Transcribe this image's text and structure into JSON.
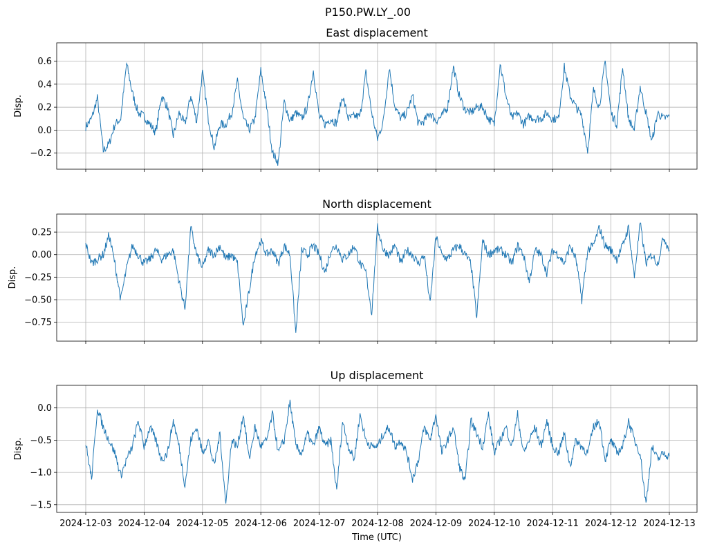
{
  "page": {
    "suptitle": "P150.PW.LY_.00"
  },
  "colors": {
    "line": "#1f77b4",
    "grid": "#b0b0b0",
    "axis": "#000000"
  },
  "chart_data": [
    {
      "type": "line",
      "title": "East displacement",
      "xlabel": "",
      "ylabel": "Disp.",
      "ylim": [
        -0.34,
        0.76
      ],
      "yticks": [
        -0.2,
        0.0,
        0.2,
        0.4,
        0.6
      ],
      "ytick_labels": [
        "−0.2",
        "0.0",
        "0.2",
        "0.4",
        "0.6"
      ],
      "grid": true,
      "x_range": [
        "2024-12-03",
        "2024-12-13"
      ],
      "series": [
        {
          "x_days": [
            0,
            0.1,
            0.2,
            0.3,
            0.4,
            0.5,
            0.6,
            0.7,
            0.8,
            0.9,
            1.0,
            1.1,
            1.2,
            1.3,
            1.4,
            1.5,
            1.6,
            1.7,
            1.8,
            1.9,
            2.0,
            2.1,
            2.2,
            2.3,
            2.4,
            2.5,
            2.6,
            2.7,
            2.8,
            2.9,
            3.0,
            3.1,
            3.2,
            3.3,
            3.4,
            3.5,
            3.6,
            3.7,
            3.8,
            3.9,
            4.0,
            4.1,
            4.2,
            4.3,
            4.4,
            4.5,
            4.6,
            4.7,
            4.8,
            4.9,
            5.0,
            5.1,
            5.2,
            5.3,
            5.4,
            5.5,
            5.6,
            5.7,
            5.8,
            5.9,
            6.0,
            6.1,
            6.2,
            6.3,
            6.4,
            6.5,
            6.6,
            6.7,
            6.8,
            6.9,
            7.0,
            7.1,
            7.2,
            7.3,
            7.4,
            7.5,
            7.6,
            7.7,
            7.8,
            7.9,
            8.0,
            8.1,
            8.2,
            8.3,
            8.4,
            8.5,
            8.6,
            8.7,
            8.8,
            8.9,
            9.0,
            9.1,
            9.2,
            9.3,
            9.4,
            9.5,
            9.6,
            9.7,
            9.8,
            9.9,
            10.0
          ],
          "values": [
            0.03,
            0.1,
            0.28,
            -0.18,
            -0.12,
            0.05,
            0.1,
            0.58,
            0.32,
            0.15,
            0.12,
            0.05,
            -0.02,
            0.3,
            0.2,
            -0.05,
            0.15,
            0.05,
            0.3,
            0.08,
            0.5,
            0.1,
            -0.15,
            0.05,
            0.05,
            0.15,
            0.42,
            0.1,
            0.0,
            0.1,
            0.52,
            0.2,
            -0.2,
            -0.28,
            0.25,
            0.08,
            0.15,
            0.1,
            0.2,
            0.52,
            0.12,
            0.05,
            0.1,
            0.06,
            0.3,
            0.1,
            0.12,
            0.12,
            0.5,
            0.15,
            -0.08,
            0.08,
            0.55,
            0.2,
            0.1,
            0.15,
            0.3,
            0.05,
            0.08,
            0.15,
            0.08,
            0.12,
            0.2,
            0.55,
            0.3,
            0.18,
            0.15,
            0.2,
            0.2,
            0.1,
            0.05,
            0.58,
            0.3,
            0.1,
            0.15,
            0.05,
            0.12,
            0.1,
            0.1,
            0.15,
            0.1,
            0.1,
            0.55,
            0.3,
            0.2,
            0.12,
            -0.18,
            0.35,
            0.2,
            0.6,
            0.15,
            0.05,
            0.55,
            0.1,
            0.0,
            0.38,
            0.15,
            -0.1,
            0.15,
            0.1,
            0.12
          ]
        }
      ]
    },
    {
      "type": "line",
      "title": "North displacement",
      "xlabel": "",
      "ylabel": "Disp.",
      "ylim": [
        -0.96,
        0.45
      ],
      "yticks": [
        -0.75,
        -0.5,
        -0.25,
        0.0,
        0.25
      ],
      "ytick_labels": [
        "−0.75",
        "−0.50",
        "−0.25",
        "0.00",
        "0.25"
      ],
      "grid": true,
      "x_range": [
        "2024-12-03",
        "2024-12-13"
      ],
      "series": [
        {
          "x_days": [
            0,
            0.1,
            0.2,
            0.3,
            0.4,
            0.5,
            0.6,
            0.7,
            0.8,
            0.9,
            1.0,
            1.1,
            1.2,
            1.3,
            1.4,
            1.5,
            1.6,
            1.7,
            1.8,
            1.9,
            2.0,
            2.1,
            2.2,
            2.3,
            2.4,
            2.5,
            2.6,
            2.7,
            2.8,
            2.9,
            3.0,
            3.1,
            3.2,
            3.3,
            3.4,
            3.5,
            3.6,
            3.7,
            3.8,
            3.9,
            4.0,
            4.1,
            4.2,
            4.3,
            4.4,
            4.5,
            4.6,
            4.7,
            4.8,
            4.9,
            5.0,
            5.1,
            5.2,
            5.3,
            5.4,
            5.5,
            5.6,
            5.7,
            5.8,
            5.9,
            6.0,
            6.1,
            6.2,
            6.3,
            6.4,
            6.5,
            6.6,
            6.7,
            6.8,
            6.9,
            7.0,
            7.1,
            7.2,
            7.3,
            7.4,
            7.5,
            7.6,
            7.7,
            7.8,
            7.9,
            8.0,
            8.1,
            8.2,
            8.3,
            8.4,
            8.5,
            8.6,
            8.7,
            8.8,
            8.9,
            9.0,
            9.1,
            9.2,
            9.3,
            9.4,
            9.5,
            9.6,
            9.7,
            9.8,
            9.9,
            10.0
          ],
          "values": [
            0.12,
            -0.1,
            -0.05,
            0.0,
            0.22,
            -0.1,
            -0.5,
            -0.15,
            0.1,
            0.0,
            -0.1,
            -0.05,
            0.05,
            -0.05,
            0.0,
            0.05,
            -0.3,
            -0.6,
            0.3,
            0.0,
            -0.15,
            0.05,
            0.0,
            0.1,
            -0.05,
            0.0,
            -0.1,
            -0.8,
            -0.4,
            0.0,
            0.15,
            0.0,
            0.05,
            -0.1,
            0.1,
            0.0,
            -0.88,
            0.05,
            0.0,
            0.1,
            0.0,
            -0.2,
            0.05,
            0.1,
            -0.05,
            0.0,
            0.1,
            -0.1,
            -0.2,
            -0.65,
            0.3,
            0.05,
            0.0,
            0.1,
            -0.1,
            0.05,
            0.0,
            -0.1,
            0.0,
            -0.55,
            0.2,
            0.0,
            -0.05,
            0.05,
            0.1,
            0.0,
            -0.1,
            -0.7,
            0.15,
            0.0,
            0.05,
            0.05,
            0.0,
            -0.1,
            0.1,
            0.0,
            -0.3,
            0.05,
            0.0,
            -0.2,
            0.05,
            0.0,
            -0.1,
            0.1,
            -0.05,
            -0.5,
            0.05,
            0.1,
            0.3,
            0.1,
            0.05,
            -0.05,
            0.1,
            0.3,
            -0.25,
            0.35,
            -0.1,
            0.0,
            -0.1,
            0.2,
            0.05
          ]
        }
      ]
    },
    {
      "type": "line",
      "title": "Up displacement",
      "xlabel": "Time (UTC)",
      "ylabel": "Disp.",
      "ylim": [
        -1.62,
        0.35
      ],
      "yticks": [
        -1.5,
        -1.0,
        -0.5,
        0.0
      ],
      "ytick_labels": [
        "−1.5",
        "−1.0",
        "−0.5",
        "0.0"
      ],
      "grid": true,
      "x_range": [
        "2024-12-03",
        "2024-12-13"
      ],
      "xtick_labels": [
        "2024-12-03",
        "2024-12-04",
        "2024-12-05",
        "2024-12-06",
        "2024-12-07",
        "2024-12-08",
        "2024-12-09",
        "2024-12-10",
        "2024-12-11",
        "2024-12-12",
        "2024-12-13"
      ],
      "series": [
        {
          "x_days": [
            0,
            0.1,
            0.2,
            0.3,
            0.4,
            0.5,
            0.6,
            0.7,
            0.8,
            0.9,
            1.0,
            1.1,
            1.2,
            1.3,
            1.4,
            1.5,
            1.6,
            1.7,
            1.8,
            1.9,
            2.0,
            2.1,
            2.2,
            2.3,
            2.4,
            2.5,
            2.6,
            2.7,
            2.8,
            2.9,
            3.0,
            3.1,
            3.2,
            3.3,
            3.4,
            3.5,
            3.6,
            3.7,
            3.8,
            3.9,
            4.0,
            4.1,
            4.2,
            4.3,
            4.4,
            4.5,
            4.6,
            4.7,
            4.8,
            4.9,
            5.0,
            5.1,
            5.2,
            5.3,
            5.4,
            5.5,
            5.6,
            5.7,
            5.8,
            5.9,
            6.0,
            6.1,
            6.2,
            6.3,
            6.4,
            6.5,
            6.6,
            6.7,
            6.8,
            6.9,
            7.0,
            7.1,
            7.2,
            7.3,
            7.4,
            7.5,
            7.6,
            7.7,
            7.8,
            7.9,
            8.0,
            8.1,
            8.2,
            8.3,
            8.4,
            8.5,
            8.6,
            8.7,
            8.8,
            8.9,
            9.0,
            9.1,
            9.2,
            9.3,
            9.4,
            9.5,
            9.6,
            9.7,
            9.8,
            9.9,
            10.0
          ],
          "values": [
            -0.55,
            -1.1,
            0.0,
            -0.3,
            -0.5,
            -0.7,
            -1.05,
            -0.8,
            -0.6,
            -0.2,
            -0.6,
            -0.3,
            -0.5,
            -0.8,
            -0.7,
            -0.2,
            -0.6,
            -1.2,
            -0.5,
            -0.3,
            -0.7,
            -0.5,
            -0.9,
            -0.4,
            -1.5,
            -0.5,
            -0.6,
            -0.1,
            -0.8,
            -0.3,
            -0.6,
            -0.5,
            -0.1,
            -0.7,
            -0.5,
            0.1,
            -0.6,
            -0.7,
            -0.4,
            -0.6,
            -0.3,
            -0.6,
            -0.5,
            -1.3,
            -0.2,
            -0.6,
            -0.8,
            -0.1,
            -0.5,
            -0.6,
            -0.6,
            -0.4,
            -0.3,
            -0.6,
            -0.5,
            -0.7,
            -1.1,
            -0.8,
            -0.3,
            -0.5,
            -0.1,
            -0.7,
            -0.5,
            -0.3,
            -0.9,
            -1.15,
            -0.2,
            -0.4,
            -0.6,
            -0.1,
            -0.7,
            -0.5,
            -0.3,
            -0.6,
            -0.1,
            -0.7,
            -0.5,
            -0.3,
            -0.6,
            -0.2,
            -0.6,
            -0.7,
            -0.4,
            -0.9,
            -0.5,
            -0.6,
            -0.7,
            -0.3,
            -0.2,
            -0.8,
            -0.5,
            -0.7,
            -0.6,
            -0.2,
            -0.5,
            -0.7,
            -1.5,
            -0.6,
            -0.8,
            -0.7,
            -0.75
          ]
        }
      ]
    }
  ]
}
